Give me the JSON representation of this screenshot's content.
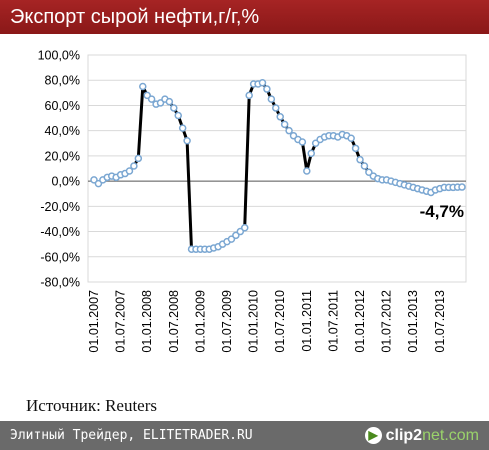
{
  "header": {
    "title": "Экспорт сырой нефти,г/г,%"
  },
  "source": {
    "text": "Источник: Reuters"
  },
  "footer": {
    "text": "Элитный Трейдер, ELITETRADER.RU",
    "brand_main": "clip2",
    "brand_suffix": "net.com",
    "brand_icon": "play-icon"
  },
  "chart_data": {
    "type": "line",
    "title": "Экспорт сырой нефти,г/г,%",
    "ylim": [
      -80,
      100
    ],
    "y_ticks": [
      "100,0%",
      "80,0%",
      "60,0%",
      "40,0%",
      "20,0%",
      "0,0%",
      "-20,0%",
      "-40,0%",
      "-60,0%",
      "-80,0%"
    ],
    "x_ticks": [
      "01.01.2007",
      "01.07.2007",
      "01.01.2008",
      "01.07.2008",
      "01.01.2009",
      "01.07.2009",
      "01.01.2010",
      "01.07.2010",
      "01.01.2011",
      "01.07.2011",
      "01.01.2012",
      "01.07.2012",
      "01.01.2013",
      "01.07.2013"
    ],
    "x_range": [
      "2007-01",
      "2013-12"
    ],
    "annotation": {
      "text": "-4,7%",
      "x": "2013-12",
      "y": -4.7
    },
    "grid": "horizontal",
    "line_color": "#000000",
    "marker_color": "#7ba7d2",
    "zero_line_color": "#555555",
    "series": [
      {
        "x": [
          "2007-01",
          "2007-02",
          "2007-03",
          "2007-04",
          "2007-05",
          "2007-06",
          "2007-07",
          "2007-08",
          "2007-09",
          "2007-10",
          "2007-11",
          "2007-12",
          "2008-01",
          "2008-02",
          "2008-03",
          "2008-04",
          "2008-05",
          "2008-06",
          "2008-07",
          "2008-08",
          "2008-09",
          "2008-10",
          "2008-11",
          "2008-12",
          "2009-01",
          "2009-02",
          "2009-03",
          "2009-04",
          "2009-05",
          "2009-06",
          "2009-07",
          "2009-08",
          "2009-09",
          "2009-10",
          "2009-11",
          "2009-12",
          "2010-01",
          "2010-02",
          "2010-03",
          "2010-04",
          "2010-05",
          "2010-06",
          "2010-07",
          "2010-08",
          "2010-09",
          "2010-10",
          "2010-11",
          "2010-12",
          "2011-01",
          "2011-02",
          "2011-03",
          "2011-04",
          "2011-05",
          "2011-06",
          "2011-07",
          "2011-08",
          "2011-09",
          "2011-10",
          "2011-11",
          "2011-12",
          "2012-01",
          "2012-02",
          "2012-03",
          "2012-04",
          "2012-05",
          "2012-06",
          "2012-07",
          "2012-08",
          "2012-09",
          "2012-10",
          "2012-11",
          "2012-12",
          "2013-01",
          "2013-02",
          "2013-03",
          "2013-04",
          "2013-05",
          "2013-06",
          "2013-07",
          "2013-08",
          "2013-09",
          "2013-10",
          "2013-11",
          "2013-12"
        ],
        "values": [
          1,
          -2,
          1,
          3,
          4,
          3,
          5,
          6,
          8,
          12,
          18,
          75,
          68,
          65,
          61,
          62,
          65,
          63,
          58,
          52,
          42,
          32,
          -54,
          -54,
          -54,
          -54,
          -54,
          -53,
          -52,
          -50,
          -48,
          -46,
          -43,
          -40,
          -37,
          68,
          77,
          77,
          78,
          73,
          65,
          58,
          51,
          45,
          40,
          36,
          33,
          31,
          8,
          22,
          30,
          33,
          35,
          36,
          36,
          35,
          37,
          36,
          34,
          26,
          17,
          12,
          7,
          4,
          2,
          1,
          1,
          0,
          -1,
          -2,
          -3,
          -4,
          -5,
          -6,
          -7,
          -8,
          -9,
          -7,
          -6,
          -5,
          -5,
          -5,
          -4.8,
          -4.7
        ]
      }
    ]
  }
}
